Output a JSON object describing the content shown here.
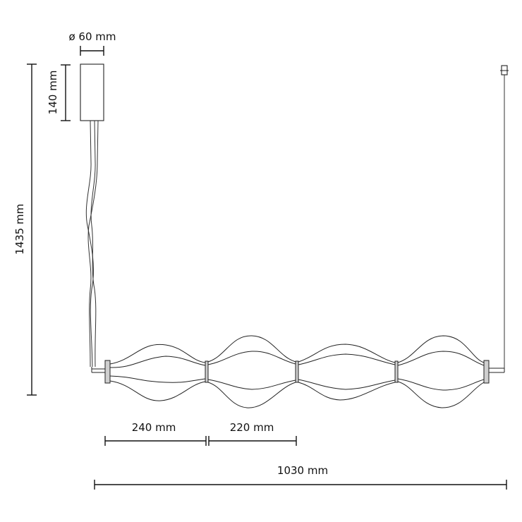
{
  "dimensions": {
    "canopy_diameter": "ø 60 mm",
    "canopy_height": "140 mm",
    "total_height": "1435 mm",
    "segment_end_width": "240 mm",
    "segment_middle_width": "220 mm",
    "total_width": "1030 mm"
  }
}
